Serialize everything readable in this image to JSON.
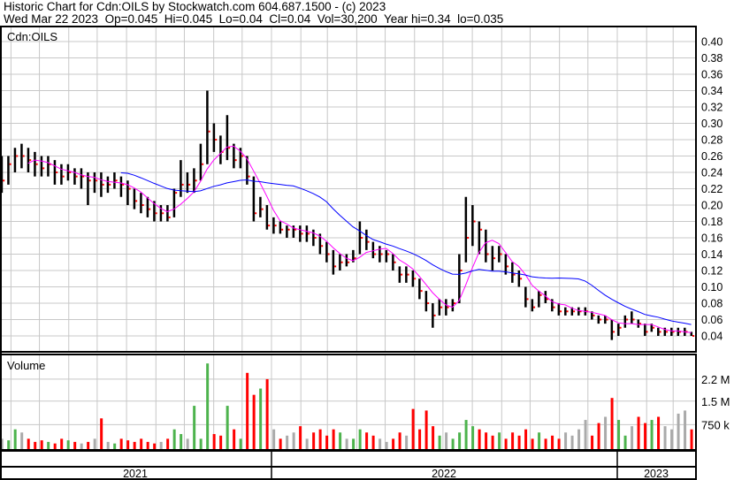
{
  "header": {
    "title": "Historic Chart for Cdn:OILS by Stockwatch.com 604.687.1500 - (c) 2023",
    "quote_line": "Wed Mar 22 2023  Op=0.045  Hi=0.045  Lo=0.04  Cl=0.04  Vol=30,200  Year hi=0.34  lo=0.035"
  },
  "chart_data": {
    "type": "ohlc",
    "symbol_label": "Cdn:OILS",
    "volume_label": "Volume",
    "y_axis": {
      "range": [
        0.02,
        0.41
      ],
      "ticks": [
        "0.40",
        "0.38",
        "0.36",
        "0.34",
        "0.32",
        "0.30",
        "0.28",
        "0.26",
        "0.24",
        "0.22",
        "0.20",
        "0.18",
        "0.16",
        "0.14",
        "0.12",
        "0.10",
        "0.08",
        "0.06",
        "0.04"
      ],
      "position": "right"
    },
    "volume_axis": {
      "unit": "shares (millions)",
      "ticks": [
        {
          "label": "2.2 M",
          "value": 2.2
        },
        {
          "label": "1.5 M",
          "value": 1.5
        },
        {
          "label": "750 k",
          "value": 0.75
        }
      ]
    },
    "x_axis": {
      "years": [
        "2021",
        "2022",
        "2023"
      ],
      "grid": "monthly"
    },
    "grid": true,
    "colors": {
      "bars": "#000000",
      "close_tick": "#ff0000",
      "ma_short": "#ff00ff",
      "ma_long": "#0000ff",
      "vol_up": "#4db34d",
      "vol_down": "#ff0000",
      "vol_flat": "#aaaaaa",
      "grid": "#c8c8c8"
    },
    "columns": [
      "date",
      "high",
      "low",
      "close",
      "volume_millions"
    ],
    "weeks": [
      [
        "2021-03-22",
        0.26,
        0.215,
        0.23,
        0.3
      ],
      [
        "2021-03-29",
        0.26,
        0.225,
        0.25,
        0.25
      ],
      [
        "2021-04-05",
        0.27,
        0.24,
        0.26,
        0.6
      ],
      [
        "2021-04-12",
        0.275,
        0.245,
        0.26,
        0.5
      ],
      [
        "2021-04-19",
        0.27,
        0.24,
        0.255,
        0.3
      ],
      [
        "2021-04-26",
        0.265,
        0.235,
        0.25,
        0.2
      ],
      [
        "2021-05-03",
        0.26,
        0.235,
        0.245,
        0.25
      ],
      [
        "2021-05-10",
        0.26,
        0.235,
        0.25,
        0.2
      ],
      [
        "2021-05-17",
        0.255,
        0.225,
        0.24,
        0.15
      ],
      [
        "2021-05-24",
        0.25,
        0.225,
        0.235,
        0.3
      ],
      [
        "2021-05-31",
        0.25,
        0.23,
        0.24,
        0.25
      ],
      [
        "2021-06-07",
        0.245,
        0.225,
        0.235,
        0.2
      ],
      [
        "2021-06-14",
        0.245,
        0.22,
        0.235,
        0.15
      ],
      [
        "2021-06-21",
        0.24,
        0.2,
        0.23,
        0.2
      ],
      [
        "2021-06-28",
        0.24,
        0.215,
        0.23,
        0.3
      ],
      [
        "2021-07-05",
        0.24,
        0.21,
        0.225,
        0.95
      ],
      [
        "2021-07-12",
        0.235,
        0.215,
        0.225,
        0.2
      ],
      [
        "2021-07-19",
        0.24,
        0.22,
        0.23,
        0.15
      ],
      [
        "2021-07-26",
        0.235,
        0.21,
        0.225,
        0.3
      ],
      [
        "2021-08-02",
        0.23,
        0.2,
        0.22,
        0.25
      ],
      [
        "2021-08-09",
        0.22,
        0.195,
        0.205,
        0.2
      ],
      [
        "2021-08-16",
        0.215,
        0.19,
        0.2,
        0.3
      ],
      [
        "2021-08-23",
        0.21,
        0.185,
        0.195,
        0.2
      ],
      [
        "2021-08-30",
        0.205,
        0.18,
        0.19,
        0.15
      ],
      [
        "2021-09-06",
        0.2,
        0.18,
        0.19,
        0.2
      ],
      [
        "2021-09-13",
        0.2,
        0.18,
        0.185,
        0.3
      ],
      [
        "2021-09-20",
        0.22,
        0.185,
        0.215,
        0.6
      ],
      [
        "2021-09-27",
        0.255,
        0.21,
        0.225,
        0.45
      ],
      [
        "2021-10-04",
        0.24,
        0.215,
        0.225,
        0.3
      ],
      [
        "2021-10-11",
        0.245,
        0.215,
        0.23,
        1.35
      ],
      [
        "2021-10-18",
        0.275,
        0.23,
        0.25,
        0.3
      ],
      [
        "2021-10-25",
        0.34,
        0.25,
        0.29,
        2.7
      ],
      [
        "2021-11-01",
        0.3,
        0.265,
        0.28,
        0.45
      ],
      [
        "2021-11-08",
        0.285,
        0.25,
        0.265,
        0.4
      ],
      [
        "2021-11-15",
        0.31,
        0.255,
        0.27,
        1.35
      ],
      [
        "2021-11-22",
        0.275,
        0.245,
        0.255,
        0.6
      ],
      [
        "2021-11-29",
        0.27,
        0.245,
        0.26,
        0.3
      ],
      [
        "2021-12-06",
        0.26,
        0.225,
        0.235,
        2.4
      ],
      [
        "2021-12-13",
        0.235,
        0.18,
        0.19,
        1.7
      ],
      [
        "2021-12-20",
        0.21,
        0.185,
        0.195,
        1.9
      ],
      [
        "2021-12-27",
        0.2,
        0.17,
        0.175,
        2.2
      ],
      [
        "2022-01-03",
        0.185,
        0.165,
        0.175,
        0.6
      ],
      [
        "2022-01-10",
        0.18,
        0.165,
        0.17,
        0.3
      ],
      [
        "2022-01-17",
        0.175,
        0.16,
        0.17,
        0.4
      ],
      [
        "2022-01-24",
        0.175,
        0.16,
        0.17,
        0.5
      ],
      [
        "2022-01-31",
        0.175,
        0.155,
        0.165,
        0.7
      ],
      [
        "2022-02-07",
        0.175,
        0.155,
        0.165,
        0.3
      ],
      [
        "2022-02-14",
        0.17,
        0.15,
        0.16,
        0.5
      ],
      [
        "2022-02-21",
        0.165,
        0.14,
        0.15,
        0.6
      ],
      [
        "2022-02-28",
        0.155,
        0.13,
        0.14,
        0.4
      ],
      [
        "2022-03-07",
        0.145,
        0.115,
        0.125,
        0.6
      ],
      [
        "2022-03-14",
        0.14,
        0.12,
        0.13,
        0.5
      ],
      [
        "2022-03-21",
        0.14,
        0.125,
        0.13,
        0.3
      ],
      [
        "2022-03-28",
        0.145,
        0.13,
        0.135,
        0.3
      ],
      [
        "2022-04-04",
        0.18,
        0.14,
        0.16,
        0.6
      ],
      [
        "2022-04-11",
        0.17,
        0.145,
        0.155,
        0.5
      ],
      [
        "2022-04-18",
        0.155,
        0.135,
        0.14,
        0.4
      ],
      [
        "2022-04-25",
        0.15,
        0.13,
        0.14,
        0.3
      ],
      [
        "2022-05-02",
        0.145,
        0.13,
        0.14,
        0.2
      ],
      [
        "2022-05-09",
        0.14,
        0.12,
        0.13,
        0.3
      ],
      [
        "2022-05-16",
        0.125,
        0.105,
        0.115,
        0.5
      ],
      [
        "2022-05-23",
        0.125,
        0.105,
        0.115,
        0.4
      ],
      [
        "2022-05-30",
        0.12,
        0.1,
        0.11,
        1.25
      ],
      [
        "2022-06-06",
        0.11,
        0.085,
        0.095,
        0.6
      ],
      [
        "2022-06-13",
        0.095,
        0.07,
        0.08,
        1.2
      ],
      [
        "2022-06-20",
        0.08,
        0.05,
        0.065,
        0.7
      ],
      [
        "2022-06-27",
        0.085,
        0.065,
        0.075,
        0.4
      ],
      [
        "2022-07-04",
        0.085,
        0.065,
        0.075,
        0.5
      ],
      [
        "2022-07-11",
        0.085,
        0.07,
        0.08,
        0.3
      ],
      [
        "2022-07-18",
        0.14,
        0.08,
        0.12,
        0.5
      ],
      [
        "2022-07-25",
        0.21,
        0.13,
        0.16,
        0.9
      ],
      [
        "2022-08-01",
        0.2,
        0.15,
        0.18,
        0.7
      ],
      [
        "2022-08-08",
        0.18,
        0.14,
        0.17,
        0.6
      ],
      [
        "2022-08-15",
        0.17,
        0.13,
        0.14,
        0.5
      ],
      [
        "2022-08-22",
        0.15,
        0.12,
        0.135,
        0.4
      ],
      [
        "2022-08-29",
        0.15,
        0.13,
        0.14,
        0.5
      ],
      [
        "2022-09-05",
        0.14,
        0.115,
        0.125,
        0.3
      ],
      [
        "2022-09-12",
        0.13,
        0.105,
        0.115,
        0.5
      ],
      [
        "2022-09-19",
        0.12,
        0.1,
        0.11,
        0.4
      ],
      [
        "2022-09-26",
        0.1,
        0.075,
        0.085,
        0.6
      ],
      [
        "2022-10-03",
        0.085,
        0.07,
        0.075,
        0.3
      ],
      [
        "2022-10-10",
        0.095,
        0.075,
        0.09,
        0.5
      ],
      [
        "2022-10-17",
        0.095,
        0.08,
        0.085,
        0.3
      ],
      [
        "2022-10-24",
        0.085,
        0.07,
        0.075,
        0.4
      ],
      [
        "2022-10-31",
        0.08,
        0.065,
        0.07,
        0.3
      ],
      [
        "2022-11-07",
        0.075,
        0.065,
        0.07,
        0.5
      ],
      [
        "2022-11-14",
        0.075,
        0.065,
        0.07,
        0.4
      ],
      [
        "2022-11-21",
        0.075,
        0.065,
        0.07,
        0.6
      ],
      [
        "2022-11-28",
        0.075,
        0.065,
        0.07,
        0.9
      ],
      [
        "2022-12-05",
        0.07,
        0.06,
        0.065,
        0.4
      ],
      [
        "2022-12-12",
        0.065,
        0.055,
        0.06,
        0.8
      ],
      [
        "2022-12-19",
        0.065,
        0.055,
        0.06,
        1.0
      ],
      [
        "2022-12-26",
        0.06,
        0.035,
        0.045,
        1.6
      ],
      [
        "2023-01-02",
        0.055,
        0.04,
        0.05,
        0.9
      ],
      [
        "2023-01-09",
        0.065,
        0.05,
        0.06,
        0.4
      ],
      [
        "2023-01-16",
        0.07,
        0.055,
        0.06,
        0.7
      ],
      [
        "2023-01-23",
        0.06,
        0.05,
        0.055,
        1.0
      ],
      [
        "2023-01-30",
        0.055,
        0.04,
        0.045,
        0.8
      ],
      [
        "2023-02-06",
        0.055,
        0.045,
        0.05,
        0.9
      ],
      [
        "2023-02-13",
        0.05,
        0.04,
        0.045,
        1.0
      ],
      [
        "2023-02-20",
        0.05,
        0.04,
        0.045,
        0.7
      ],
      [
        "2023-02-27",
        0.05,
        0.04,
        0.045,
        0.6
      ],
      [
        "2023-03-06",
        0.05,
        0.04,
        0.045,
        1.1
      ],
      [
        "2023-03-13",
        0.05,
        0.04,
        0.045,
        1.2
      ],
      [
        "2023-03-20",
        0.045,
        0.04,
        0.04,
        0.6
      ]
    ]
  }
}
